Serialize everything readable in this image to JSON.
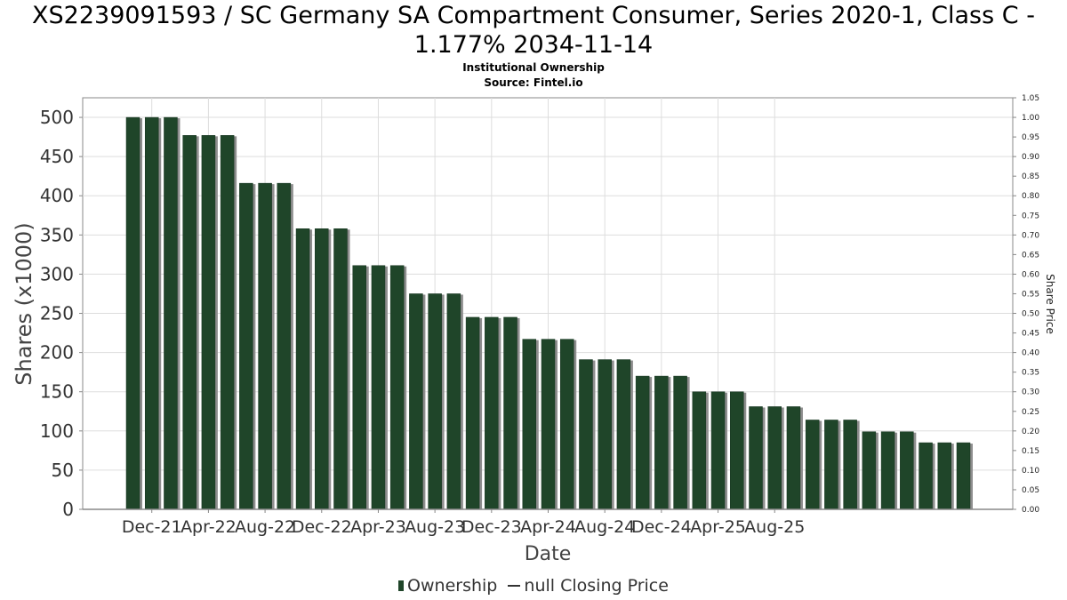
{
  "header": {
    "title_line1": "XS2239091593 / SC Germany SA Compartment Consumer, Series 2020-1, Class C -",
    "title_line2": "1.177% 2034-11-14",
    "subtitle1": "Institutional Ownership",
    "subtitle2": "Source: Fintel.io"
  },
  "legend": {
    "ownership_label": "Ownership",
    "price_label": "null Closing Price"
  },
  "colors": {
    "bar": "#1f4529",
    "bar_shadow": "#8e8e8e",
    "grid": "#dddddd",
    "axis": "#888888"
  },
  "chart_data": {
    "type": "bar",
    "title": "XS2239091593 / SC Germany SA Compartment Consumer, Series 2020-1, Class C - 1.177% 2034-11-14",
    "subtitle": "Institutional Ownership",
    "xlabel": "Date",
    "ylabel": "Shares (x1000)",
    "y2label": "Share Price",
    "ylim": [
      0,
      525
    ],
    "y2lim": [
      0,
      1.05
    ],
    "yticks": [
      0,
      50,
      100,
      150,
      200,
      250,
      300,
      350,
      400,
      450,
      500
    ],
    "y2ticks": [
      "0.00",
      "0.05",
      "0.10",
      "0.15",
      "0.20",
      "0.25",
      "0.30",
      "0.35",
      "0.40",
      "0.45",
      "0.50",
      "0.55",
      "0.60",
      "0.65",
      "0.70",
      "0.75",
      "0.80",
      "0.85",
      "0.90",
      "0.95",
      "1.00",
      "1.05"
    ],
    "xticks": [
      "Dec-21",
      "Apr-22",
      "Aug-22",
      "Dec-22",
      "Apr-23",
      "Aug-23",
      "Dec-23",
      "Apr-24",
      "Aug-24",
      "Dec-24",
      "Apr-25",
      "Aug-25"
    ],
    "grid": true,
    "legend_position": "bottom",
    "series": [
      {
        "name": "Ownership",
        "values": [
          500,
          500,
          500,
          477,
          477,
          477,
          416,
          416,
          416,
          358,
          358,
          358,
          311,
          311,
          311,
          275,
          275,
          275,
          245,
          245,
          245,
          217,
          217,
          217,
          191,
          191,
          191,
          170,
          170,
          170,
          150,
          150,
          150,
          131,
          131,
          131,
          114,
          114,
          114,
          99,
          99,
          99,
          85,
          85,
          85
        ]
      },
      {
        "name": "null Closing Price",
        "values": []
      }
    ]
  }
}
